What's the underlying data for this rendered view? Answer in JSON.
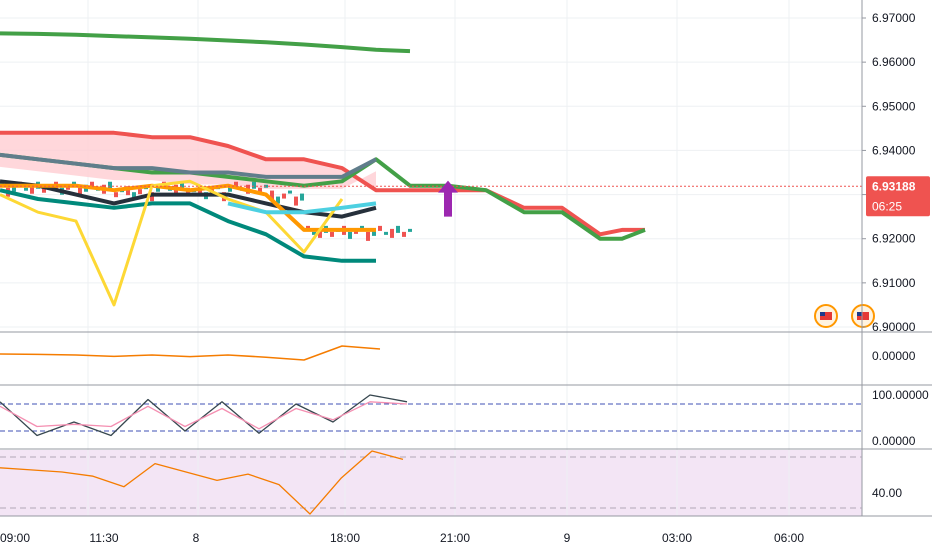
{
  "chart_data": {
    "type": "line",
    "main": {
      "price_scale": {
        "ticks": [
          "6.97000",
          "6.96000",
          "6.95000",
          "6.94000",
          "6.93000",
          "6.92000",
          "6.91000",
          "6.90000"
        ],
        "ylim": [
          6.9,
          6.97
        ]
      },
      "last_price": {
        "value": "6.93188",
        "countdown": "06:25"
      },
      "series": [
        {
          "values": [
            [
              0,
              6.9665
            ],
            [
              1,
              6.9664
            ],
            [
              2,
              6.9662
            ],
            [
              3,
              6.9659
            ],
            [
              4,
              6.9656
            ],
            [
              5,
              6.9653
            ],
            [
              6,
              6.9649
            ],
            [
              7,
              6.9645
            ],
            [
              8,
              6.964
            ],
            [
              9,
              6.9634
            ],
            [
              10,
              6.9628
            ],
            [
              11,
              6.9625
            ]
          ],
          "color": "#43a047"
        },
        {
          "values": [
            [
              0,
              6.944
            ],
            [
              1,
              6.944
            ],
            [
              2,
              6.944
            ],
            [
              3,
              6.944
            ],
            [
              4,
              6.943
            ],
            [
              5,
              6.943
            ],
            [
              6,
              6.941
            ],
            [
              7,
              6.938
            ],
            [
              8,
              6.938
            ],
            [
              9,
              6.936
            ],
            [
              10,
              6.931
            ],
            [
              11,
              6.931
            ],
            [
              12,
              6.931
            ],
            [
              13,
              6.931
            ],
            [
              14,
              6.927
            ],
            [
              15,
              6.927
            ],
            [
              16,
              6.921
            ],
            [
              17,
              6.922
            ],
            [
              18,
              6.922
            ]
          ],
          "color": "#ef5350"
        },
        {
          "values": [
            [
              0,
              6.939
            ],
            [
              1,
              6.938
            ],
            [
              2,
              6.937
            ],
            [
              3,
              6.936
            ],
            [
              4,
              6.935
            ],
            [
              5,
              6.935
            ],
            [
              6,
              6.934
            ],
            [
              7,
              6.933
            ],
            [
              8,
              6.932
            ],
            [
              9,
              6.933
            ],
            [
              10,
              6.938
            ],
            [
              11,
              6.932
            ],
            [
              12,
              6.932
            ],
            [
              13,
              6.931
            ],
            [
              14,
              6.926
            ],
            [
              15,
              6.926
            ],
            [
              16,
              6.92
            ],
            [
              17,
              6.92
            ],
            [
              18,
              6.922
            ]
          ],
          "color": "#43a047"
        },
        {
          "values": [
            [
              0,
              6.939
            ],
            [
              1,
              6.938
            ],
            [
              2,
              6.937
            ],
            [
              3,
              6.936
            ],
            [
              4,
              6.936
            ],
            [
              5,
              6.935
            ],
            [
              6,
              6.935
            ],
            [
              7,
              6.934
            ],
            [
              8,
              6.934
            ],
            [
              9,
              6.934
            ],
            [
              10,
              6.938
            ]
          ],
          "color": "#607d8b"
        },
        {
          "values": [
            [
              0,
              6.933
            ],
            [
              1,
              6.932
            ],
            [
              2,
              6.93
            ],
            [
              3,
              6.928
            ],
            [
              4,
              6.93
            ],
            [
              5,
              6.93
            ],
            [
              6,
              6.93
            ],
            [
              7,
              6.928
            ],
            [
              8,
              6.926
            ],
            [
              9,
              6.925
            ],
            [
              10,
              6.927
            ]
          ],
          "color": "#26303b"
        },
        {
          "values": [
            [
              0,
              6.932
            ],
            [
              1,
              6.932
            ],
            [
              2,
              6.932
            ],
            [
              3,
              6.931
            ],
            [
              4,
              6.932
            ],
            [
              5,
              6.931
            ],
            [
              6,
              6.932
            ],
            [
              7,
              6.93
            ],
            [
              8,
              6.922
            ],
            [
              9,
              6.922
            ],
            [
              10,
              6.922
            ]
          ],
          "color": "#ff9800"
        },
        {
          "values": [
            [
              0,
              6.931
            ],
            [
              1,
              6.929
            ],
            [
              2,
              6.928
            ],
            [
              3,
              6.927
            ],
            [
              4,
              6.928
            ],
            [
              5,
              6.928
            ],
            [
              6,
              6.924
            ],
            [
              7,
              6.921
            ],
            [
              8,
              6.916
            ],
            [
              9,
              6.915
            ],
            [
              10,
              6.915
            ]
          ],
          "color": "#00897b"
        },
        {
          "values": [
            [
              0,
              6.93
            ],
            [
              1,
              6.926
            ],
            [
              2,
              6.924
            ],
            [
              3,
              6.905
            ],
            [
              4,
              6.932
            ],
            [
              5,
              6.933
            ],
            [
              6,
              6.929
            ],
            [
              7,
              6.926
            ],
            [
              8,
              6.917
            ],
            [
              9,
              6.929
            ]
          ],
          "color": "#fdd835"
        },
        {
          "values": [
            [
              6,
              6.928
            ],
            [
              7,
              6.926
            ],
            [
              8,
              6.926
            ],
            [
              9,
              6.927
            ],
            [
              10,
              6.928
            ]
          ],
          "color": "#4dd0e1"
        }
      ],
      "markers": [
        {
          "type": "arrow-up",
          "x": 12,
          "y": 6.93,
          "color": "#9c27b0"
        }
      ],
      "icons": [
        "us-flag-event-icon",
        "us-flag-event-icon"
      ]
    },
    "osc1": {
      "tick": "0.00000",
      "series": [
        {
          "values": [
            [
              0,
              0.1
            ],
            [
              1,
              0.08
            ],
            [
              2,
              0.05
            ],
            [
              3,
              -0.02
            ],
            [
              4,
              0.05
            ],
            [
              5,
              -0.03
            ],
            [
              6,
              0.05
            ],
            [
              7,
              -0.06
            ],
            [
              8,
              -0.2
            ],
            [
              9,
              0.5
            ],
            [
              10,
              0.35
            ]
          ],
          "color": "#f57c00"
        }
      ]
    },
    "osc2": {
      "ticks": [
        "100.00000",
        "0.00000"
      ],
      "levels": [
        80,
        20
      ],
      "series": [
        {
          "values": [
            [
              0,
              85
            ],
            [
              1,
              10
            ],
            [
              2,
              40
            ],
            [
              3,
              10
            ],
            [
              4,
              90
            ],
            [
              5,
              20
            ],
            [
              6,
              85
            ],
            [
              7,
              15
            ],
            [
              8,
              80
            ],
            [
              9,
              40
            ],
            [
              10,
              100
            ],
            [
              11,
              85
            ]
          ],
          "color": "#37474f"
        },
        {
          "values": [
            [
              0,
              75
            ],
            [
              1,
              30
            ],
            [
              2,
              35
            ],
            [
              3,
              30
            ],
            [
              4,
              75
            ],
            [
              5,
              30
            ],
            [
              6,
              70
            ],
            [
              7,
              25
            ],
            [
              8,
              70
            ],
            [
              9,
              45
            ],
            [
              10,
              85
            ],
            [
              11,
              80
            ]
          ],
          "color": "#f48fb1"
        }
      ]
    },
    "osc3": {
      "tick": "40.00",
      "series": [
        {
          "values": [
            [
              0,
              52
            ],
            [
              1,
              51
            ],
            [
              2,
              50
            ],
            [
              3,
              48
            ],
            [
              4,
              43
            ],
            [
              5,
              54
            ],
            [
              6,
              50
            ],
            [
              7,
              46
            ],
            [
              8,
              49
            ],
            [
              9,
              44
            ],
            [
              10,
              30
            ],
            [
              11,
              47
            ],
            [
              12,
              60
            ],
            [
              13,
              56
            ]
          ],
          "color": "#f57c00"
        }
      ]
    },
    "x_axis": {
      "ticks": [
        "09:00",
        "11:30",
        "8",
        "18:00",
        "21:00",
        "9",
        "03:00",
        "06:00"
      ]
    }
  }
}
